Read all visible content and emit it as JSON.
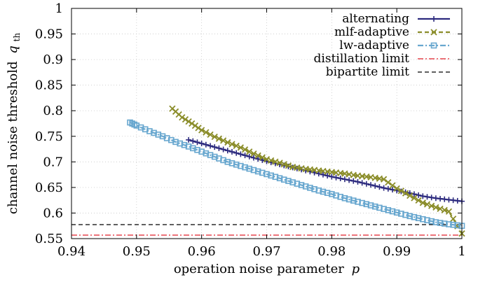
{
  "chart_data": {
    "type": "line",
    "xlabel_main": "operation noise parameter",
    "xlabel_var": "p",
    "ylabel_main": "channel noise threshold",
    "ylabel_var": "q",
    "ylabel_sub": "th",
    "xlim": [
      0.94,
      1.0
    ],
    "ylim": [
      0.55,
      1.0
    ],
    "x_ticks": [
      0.94,
      0.95,
      0.96,
      0.97,
      0.98,
      0.99,
      1.0
    ],
    "x_tick_labels": [
      "0.94",
      "0.95",
      "0.96",
      "0.97",
      "0.98",
      "0.99",
      "1"
    ],
    "y_ticks": [
      0.55,
      0.6,
      0.65,
      0.7,
      0.75,
      0.8,
      0.85,
      0.9,
      0.95,
      1.0
    ],
    "y_tick_labels": [
      "0.55",
      "0.6",
      "0.65",
      "0.7",
      "0.75",
      "0.8",
      "0.85",
      "0.9",
      "0.95",
      "1"
    ],
    "grid": true,
    "legend_position": "top-right",
    "series": [
      {
        "name": "alternating",
        "color": "#2c2a7e",
        "marker": "plus",
        "style": "solid",
        "x": [
          0.958,
          0.96,
          0.962,
          0.964,
          0.966,
          0.968,
          0.97,
          0.972,
          0.974,
          0.976,
          0.978,
          0.98,
          0.982,
          0.984,
          0.986,
          0.988,
          0.99,
          0.992,
          0.994,
          0.996,
          0.998,
          1.0
        ],
        "y": [
          0.743,
          0.736,
          0.729,
          0.722,
          0.715,
          0.708,
          0.701,
          0.695,
          0.689,
          0.683,
          0.677,
          0.671,
          0.666,
          0.661,
          0.655,
          0.649,
          0.644,
          0.639,
          0.633,
          0.629,
          0.626,
          0.623
        ]
      },
      {
        "name": "mlf-adaptive",
        "color": "#8b8d2a",
        "marker": "cross",
        "style": "dashed",
        "x": [
          0.9555,
          0.957,
          0.9585,
          0.96,
          0.962,
          0.964,
          0.966,
          0.968,
          0.97,
          0.972,
          0.974,
          0.976,
          0.978,
          0.98,
          0.982,
          0.984,
          0.986,
          0.988,
          0.99,
          0.992,
          0.994,
          0.996,
          0.998,
          1.0
        ],
        "y": [
          0.804,
          0.787,
          0.775,
          0.762,
          0.749,
          0.738,
          0.728,
          0.716,
          0.705,
          0.698,
          0.69,
          0.686,
          0.683,
          0.68,
          0.677,
          0.673,
          0.67,
          0.666,
          0.648,
          0.634,
          0.62,
          0.611,
          0.603,
          0.56
        ]
      },
      {
        "name": "lw-adaptive",
        "color": "#68a7cf",
        "marker": "square",
        "style": "dashdot",
        "x": [
          0.949,
          0.95,
          0.952,
          0.954,
          0.956,
          0.958,
          0.96,
          0.962,
          0.964,
          0.966,
          0.968,
          0.97,
          0.972,
          0.974,
          0.976,
          0.978,
          0.98,
          0.982,
          0.984,
          0.986,
          0.988,
          0.99,
          0.992,
          0.994,
          0.996,
          0.998,
          1.0
        ],
        "y": [
          0.777,
          0.771,
          0.76,
          0.75,
          0.739,
          0.73,
          0.72,
          0.71,
          0.7,
          0.692,
          0.684,
          0.676,
          0.668,
          0.66,
          0.652,
          0.644,
          0.637,
          0.629,
          0.622,
          0.615,
          0.608,
          0.601,
          0.594,
          0.588,
          0.582,
          0.578,
          0.575
        ]
      },
      {
        "name": "distillation limit",
        "color": "#e0202a",
        "marker": "none",
        "style": "dashdot",
        "x": [
          0.94,
          1.0
        ],
        "y": [
          0.5568,
          0.5568
        ]
      },
      {
        "name": "bipartite limit",
        "color": "#000000",
        "marker": "none",
        "style": "dashed",
        "x": [
          0.94,
          1.0
        ],
        "y": [
          0.5774,
          0.5774
        ]
      }
    ]
  }
}
